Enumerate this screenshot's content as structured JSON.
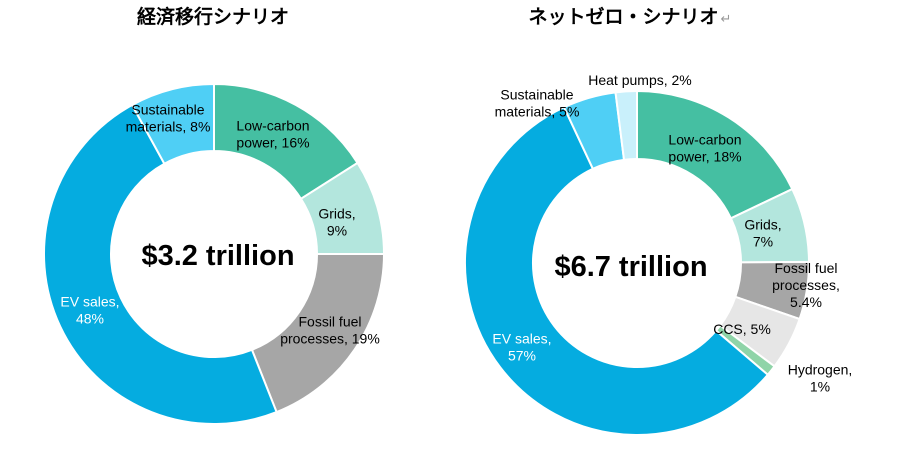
{
  "chart_data": [
    {
      "type": "donut",
      "title": "経済移行シナリオ",
      "center_label": "$3.2 trillion",
      "series": [
        {
          "label": "Low-carbon power",
          "label_lines": [
            "Low-carbon",
            "power, 16%"
          ],
          "value": 16,
          "color": "#45bfa2",
          "text_color": "#000000"
        },
        {
          "label": "Grids",
          "label_lines": [
            "Grids,",
            "9%"
          ],
          "value": 9,
          "color": "#b3e6dd",
          "text_color": "#000000"
        },
        {
          "label": "Fossil fuel processes",
          "label_lines": [
            "Fossil fuel",
            "processes, 19%"
          ],
          "value": 19,
          "color": "#a6a6a6",
          "text_color": "#000000"
        },
        {
          "label": "EV sales",
          "label_lines": [
            "EV sales,",
            "48%"
          ],
          "value": 48,
          "color": "#05ace0",
          "text_color": "#ffffff"
        },
        {
          "label": "Sustainable materials",
          "label_lines": [
            "Sustainable",
            "materials, 8%"
          ],
          "value": 8,
          "color": "#4fcff5",
          "text_color": "#000000"
        }
      ]
    },
    {
      "type": "donut",
      "title": "ネットゼロ・シナリオ",
      "title_mark": "↵",
      "center_label": "$6.7 trillion",
      "series": [
        {
          "label": "Low-carbon power",
          "label_lines": [
            "Low-carbon",
            "power, 18%"
          ],
          "value": 18,
          "color": "#45bfa2",
          "text_color": "#000000"
        },
        {
          "label": "Grids",
          "label_lines": [
            "Grids,",
            "7%"
          ],
          "value": 7,
          "color": "#b3e6dd",
          "text_color": "#000000"
        },
        {
          "label": "Fossil fuel processes",
          "label_lines": [
            "Fossil fuel",
            "processes,",
            "5.4%"
          ],
          "value": 5.4,
          "color": "#a6a6a6",
          "text_color": "#000000"
        },
        {
          "label": "CCS",
          "label_lines": [
            "CCS, 5%"
          ],
          "value": 5,
          "color": "#e6e6e6",
          "text_color": "#000000"
        },
        {
          "label": "Hydrogen",
          "label_lines": [
            "Hydrogen,",
            "1%"
          ],
          "value": 1,
          "color": "#8fd4a8",
          "text_color": "#000000"
        },
        {
          "label": "EV sales",
          "label_lines": [
            "EV sales,",
            "57%"
          ],
          "value": 57,
          "color": "#05ace0",
          "text_color": "#ffffff"
        },
        {
          "label": "Sustainable materials",
          "label_lines": [
            "Sustainable",
            "materials, 5%"
          ],
          "value": 5,
          "color": "#4fcff5",
          "text_color": "#000000"
        },
        {
          "label": "Heat pumps",
          "label_lines": [
            "Heat pumps, 2%"
          ],
          "value": 2,
          "color": "#c9f0fb",
          "text_color": "#000000"
        }
      ]
    }
  ]
}
